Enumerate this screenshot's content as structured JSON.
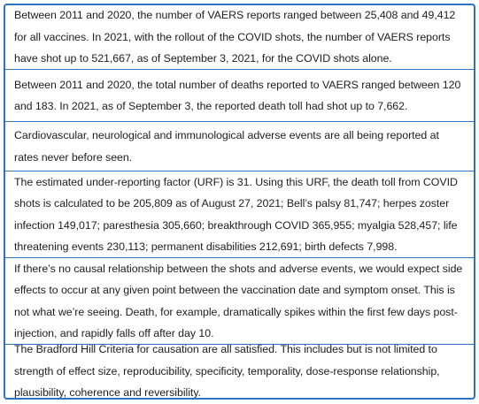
{
  "points": [
    {
      "text": "Between 2011 and 2020, the number of VAERS reports ranged between 25,408 and 49,412 for all vaccines. In 2021, with the rollout of the COVID shots, the number of VAERS reports have shot up to 521,667, as of September 3, 2021, for the COVID shots alone."
    },
    {
      "text": "Between 2011 and 2020, the total number of deaths reported to VAERS ranged between 120 and 183. In 2021, as of September 3, the reported death toll had shot up to 7,662."
    },
    {
      "text": "Cardiovascular, neurological and immunological adverse events are all being reported at rates never before seen."
    },
    {
      "text": "The estimated under-reporting factor (URF) is 31. Using this URF, the death toll from COVID shots is calculated to be 205,809 as of August 27, 2021; Bell’s palsy 81,747; herpes zoster infection 149,017; paresthesia 305,660; breakthrough COVID 365,955; myalgia 528,457; life threatening events 230,113; permanent disabilities 212,691; birth defects 7,998."
    },
    {
      "text": "If there’s no causal relationship between the shots and adverse events, we would expect side effects to occur at any given point between the vaccination date and symptom onset. This is not what we’re seeing. Death, for example, dramatically spikes within the first few days post-injection, and rapidly falls off after day 10."
    },
    {
      "text": "The Bradford Hill Criteria for causation are all satisfied. This includes but is not limited to strength of effect size, reproducibility, specificity, temporality, dose-response relationship, plausibility, coherence and reversibility."
    }
  ],
  "colors": {
    "border": "#2e72c2",
    "text": "#1d1d1d",
    "background": "#ffffff"
  }
}
